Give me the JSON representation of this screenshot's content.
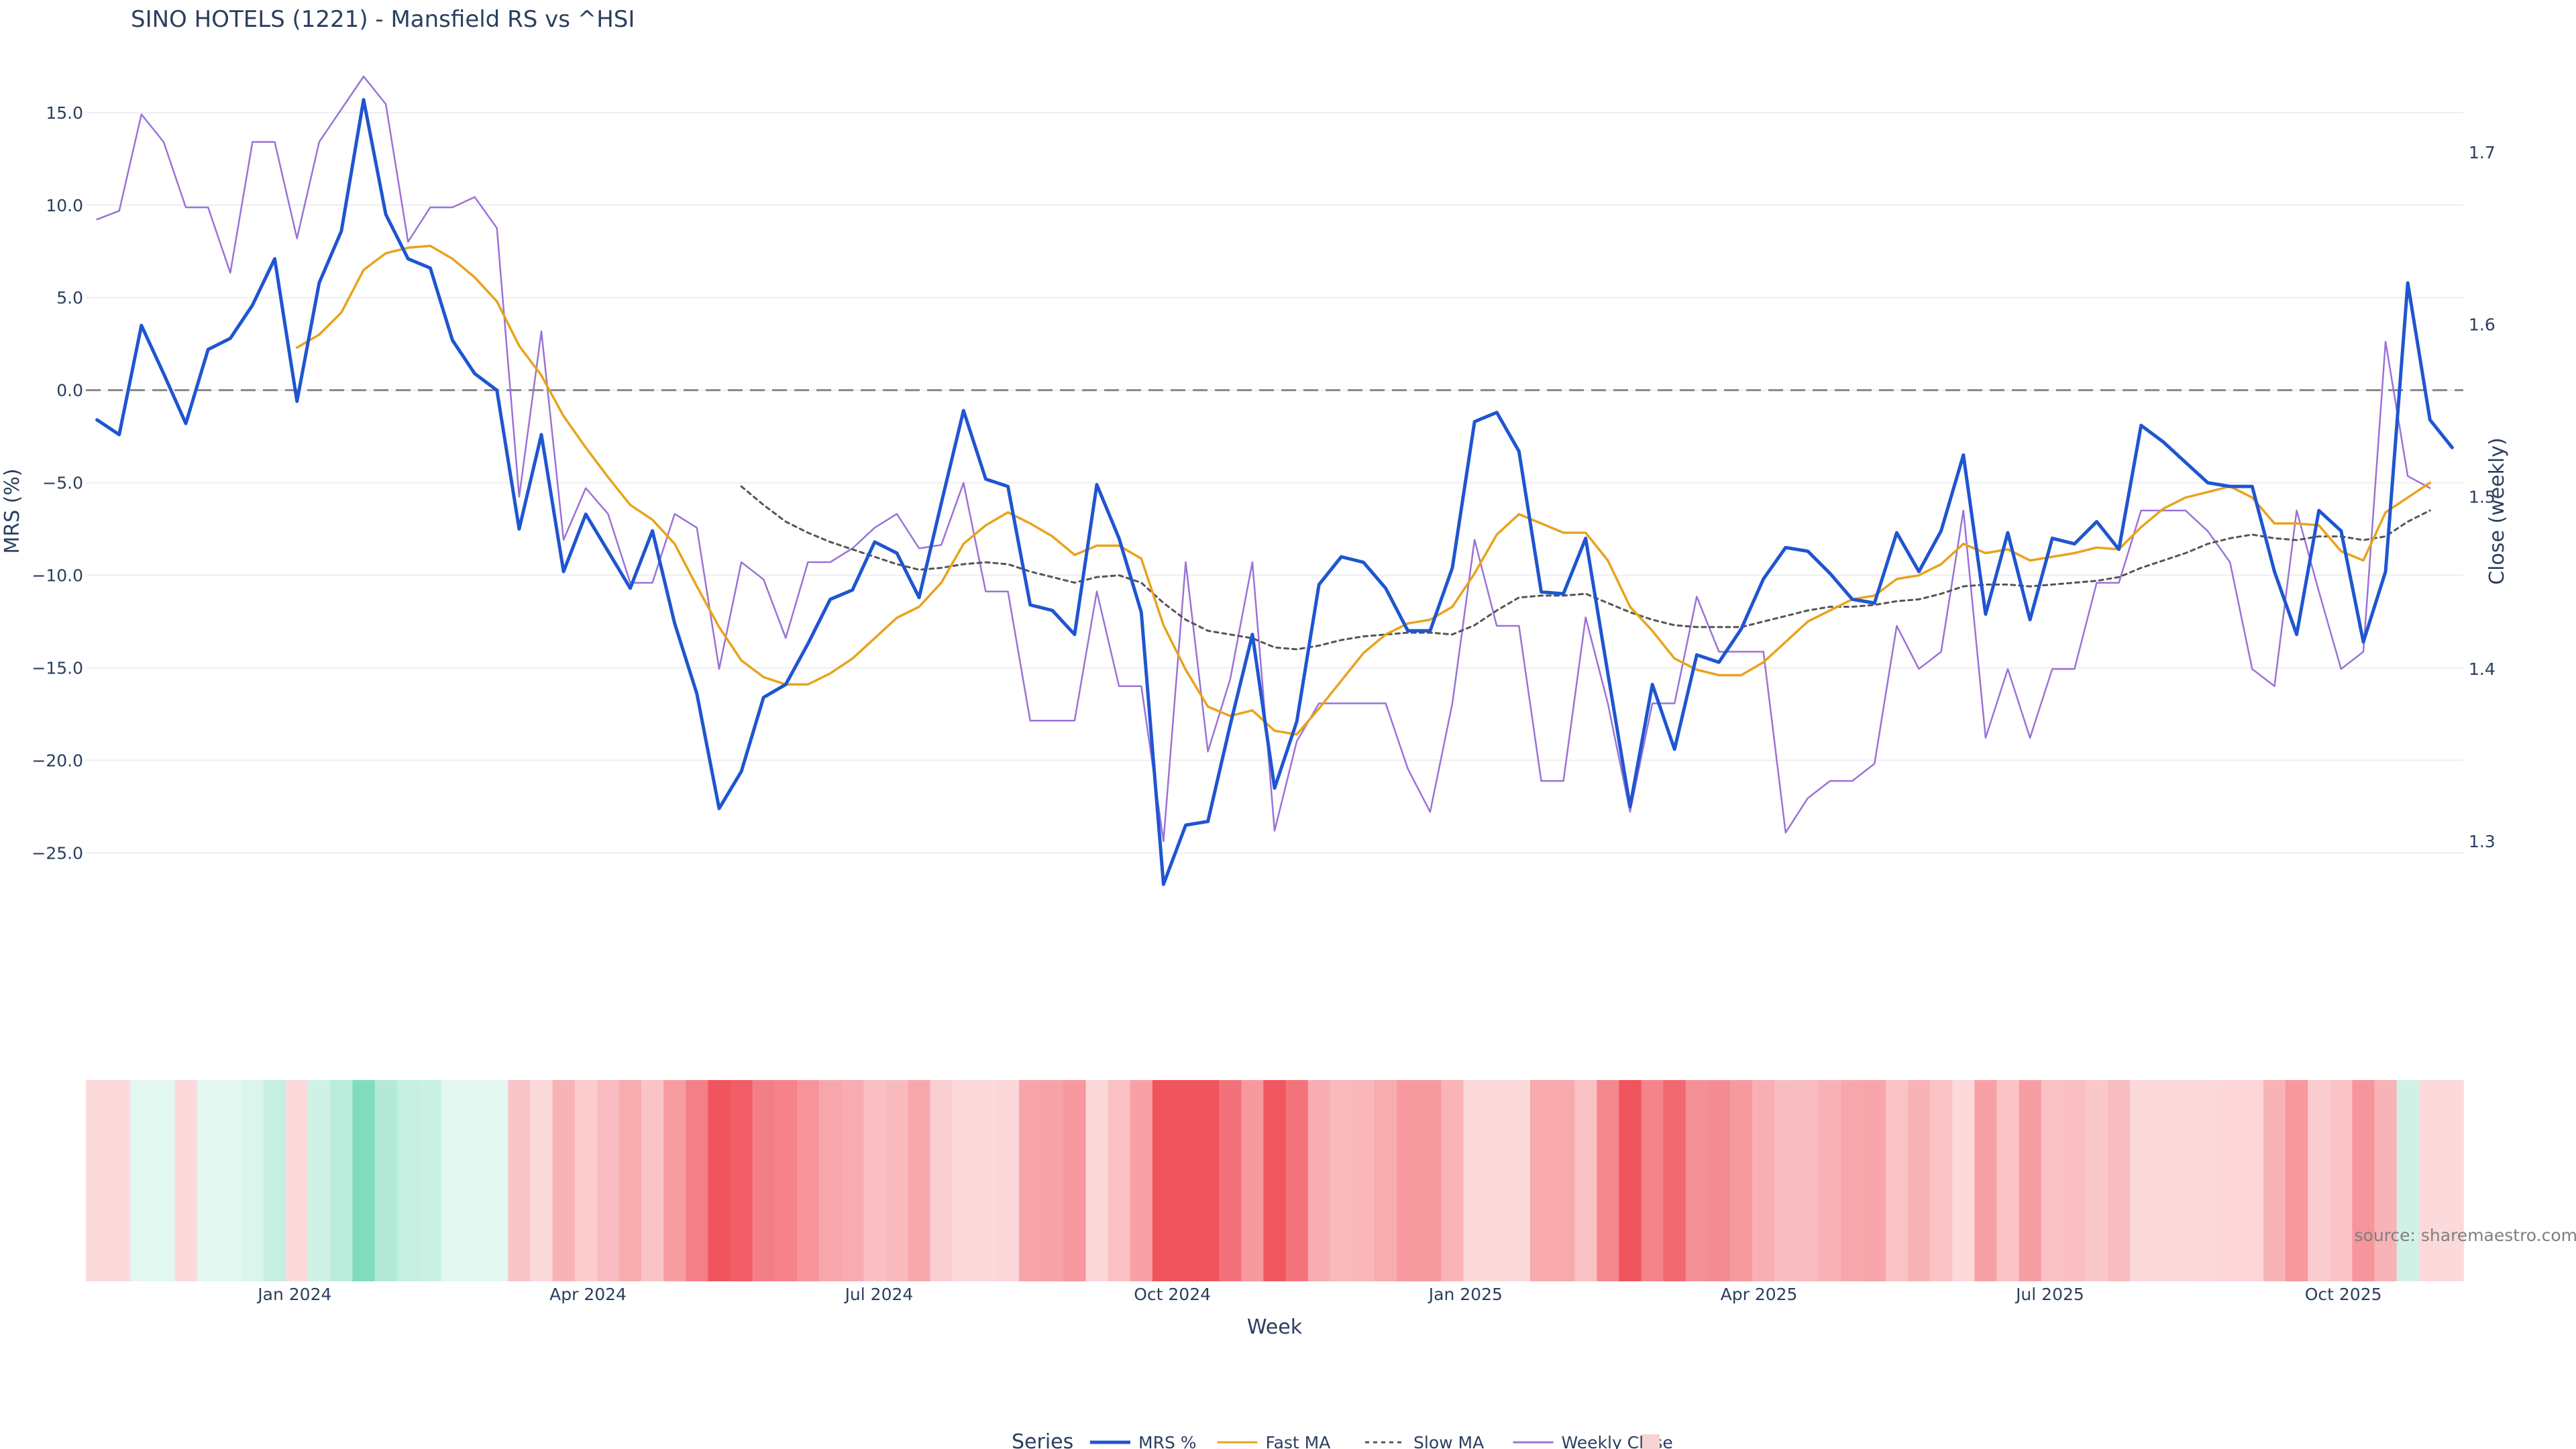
{
  "chart_data": {
    "type": "line",
    "title": "SINO HOTELS (1221) - Mansfield RS vs ^HSI",
    "ylabel_left": "MRS (%)",
    "ylabel_right": "Close (weekly)",
    "xlabel": "Week",
    "y_left_ticks": [
      "15.0",
      "10.0",
      "5.0",
      "0.0",
      "−5.0",
      "−10.0",
      "−15.0",
      "−20.0",
      "−25.0"
    ],
    "y_left_tick_values": [
      15,
      10,
      5,
      0,
      -5,
      -10,
      -15,
      -20,
      -25
    ],
    "y_left_range": [
      -29.3,
      16.3
    ],
    "y_right_ticks": [
      "1.7",
      "1.6",
      "1.5",
      "1.4",
      "1.3"
    ],
    "y_right_tick_values": [
      1.7,
      1.6,
      1.5,
      1.4,
      1.3
    ],
    "y_right_range": [
      1.247,
      1.737
    ],
    "x_ticks": [
      "Jan 2024",
      "Apr 2024",
      "Jul 2024",
      "Oct 2024",
      "Jan 2025",
      "Apr 2025",
      "Jul 2025",
      "Oct 2025"
    ],
    "x_tick_weeks": [
      9.9,
      23.1,
      36.2,
      49.4,
      62.6,
      75.8,
      88.9,
      102.1
    ],
    "reference_line": 0,
    "legend_title": "Series",
    "legend_position": "bottom-center",
    "source_text": "source: sharemaestro.com",
    "series": [
      {
        "name": "MRS %",
        "color": "#1f55d0",
        "style": "solid",
        "values": [
          -1.6,
          -2.4,
          3.5,
          0.9,
          -1.8,
          2.2,
          2.8,
          4.6,
          7.1,
          -0.6,
          5.8,
          8.6,
          15.7,
          9.5,
          7.1,
          6.6,
          2.7,
          0.9,
          0.0,
          -7.5,
          -2.4,
          -9.8,
          -6.7,
          -8.7,
          -10.7,
          -7.6,
          -12.6,
          -16.4,
          -22.6,
          -20.6,
          -16.6,
          -15.9,
          -13.7,
          -11.3,
          -10.8,
          -8.2,
          -8.8,
          -11.2,
          -6.1,
          -1.1,
          -4.8,
          -5.2,
          -11.6,
          -11.9,
          -13.2,
          -5.1,
          -8.0,
          -12.0,
          -26.7,
          -23.5,
          -23.3,
          -18.1,
          -13.2,
          -21.5,
          -17.9,
          -10.5,
          -9.0,
          -9.3,
          -10.7,
          -13.0,
          -13.0,
          -9.6,
          -1.7,
          -1.2,
          -3.3,
          -10.9,
          -11.0,
          -8.0,
          -15.3,
          -22.5,
          -15.9,
          -19.4,
          -14.3,
          -14.7,
          -12.9,
          -10.2,
          -8.5,
          -8.7,
          -9.9,
          -11.3,
          -11.5,
          -7.7,
          -9.8,
          -7.6,
          -3.5,
          -12.1,
          -7.7,
          -12.4,
          -8.0,
          -8.3,
          -7.1,
          -8.6,
          -1.9,
          -2.8,
          -3.9,
          -5.0,
          -5.2,
          -5.2,
          -9.8,
          -13.2,
          -6.5,
          -7.6,
          -13.6,
          -9.8,
          5.8,
          -1.6,
          -3.1
        ]
      },
      {
        "name": "Fast MA",
        "color": "#e8a31c",
        "style": "solid",
        "values": [
          null,
          null,
          null,
          null,
          null,
          null,
          null,
          null,
          null,
          2.3,
          3.0,
          4.2,
          6.5,
          7.4,
          7.7,
          7.8,
          7.1,
          6.1,
          4.8,
          2.4,
          0.8,
          -1.4,
          -3.1,
          -4.7,
          -6.2,
          -7.0,
          -8.3,
          -10.6,
          -12.8,
          -14.6,
          -15.5,
          -15.9,
          -15.9,
          -15.3,
          -14.5,
          -13.4,
          -12.3,
          -11.7,
          -10.4,
          -8.3,
          -7.3,
          -6.6,
          -7.2,
          -7.9,
          -8.9,
          -8.4,
          -8.4,
          -9.1,
          -12.7,
          -15.1,
          -17.1,
          -17.6,
          -17.3,
          -18.4,
          -18.6,
          -17.2,
          -15.7,
          -14.2,
          -13.2,
          -12.6,
          -12.4,
          -11.7,
          -9.9,
          -7.8,
          -6.7,
          -7.2,
          -7.7,
          -7.7,
          -9.2,
          -11.7,
          -13.0,
          -14.5,
          -15.1,
          -15.4,
          -15.4,
          -14.7,
          -13.6,
          -12.5,
          -11.9,
          -11.3,
          -11.1,
          -10.2,
          -10.0,
          -9.4,
          -8.3,
          -8.8,
          -8.6,
          -9.2,
          -9.0,
          -8.8,
          -8.5,
          -8.6,
          -7.4,
          -6.4,
          -5.8,
          -5.5,
          -5.2,
          -5.8,
          -7.2,
          -7.2,
          -7.3,
          -8.7,
          -9.2,
          -6.6,
          -5.8,
          -5.0
        ]
      },
      {
        "name": "Slow MA",
        "color": "#555555",
        "style": "dotted",
        "values": [
          null,
          null,
          null,
          null,
          null,
          null,
          null,
          null,
          null,
          null,
          null,
          null,
          null,
          null,
          null,
          null,
          null,
          null,
          null,
          null,
          null,
          null,
          null,
          null,
          null,
          null,
          null,
          null,
          null,
          -5.2,
          -6.2,
          -7.1,
          -7.7,
          -8.2,
          -8.6,
          -9.0,
          -9.4,
          -9.7,
          -9.6,
          -9.4,
          -9.3,
          -9.4,
          -9.8,
          -10.1,
          -10.4,
          -10.1,
          -10.0,
          -10.4,
          -11.5,
          -12.4,
          -13.0,
          -13.2,
          -13.4,
          -13.9,
          -14.0,
          -13.8,
          -13.5,
          -13.3,
          -13.2,
          -13.1,
          -13.1,
          -13.2,
          -12.7,
          -11.9,
          -11.2,
          -11.1,
          -11.1,
          -11.0,
          -11.5,
          -12.0,
          -12.4,
          -12.7,
          -12.8,
          -12.8,
          -12.8,
          -12.5,
          -12.2,
          -11.9,
          -11.7,
          -11.7,
          -11.6,
          -11.4,
          -11.3,
          -11.0,
          -10.6,
          -10.5,
          -10.5,
          -10.6,
          -10.5,
          -10.4,
          -10.3,
          -10.1,
          -9.6,
          -9.2,
          -8.8,
          -8.3,
          -8.0,
          -7.8,
          -8.0,
          -8.1,
          -7.9,
          -7.9,
          -8.1,
          -7.9,
          -7.1,
          -6.5
        ]
      },
      {
        "name": "Weekly Close",
        "color": "#9b72d6",
        "style": "solid",
        "values": [
          1.661,
          1.666,
          1.722,
          1.706,
          1.668,
          1.668,
          1.63,
          1.706,
          1.706,
          1.65,
          1.706,
          1.725,
          1.744,
          1.728,
          1.648,
          1.668,
          1.668,
          1.674,
          1.656,
          1.5,
          1.596,
          1.475,
          1.505,
          1.49,
          1.45,
          1.45,
          1.49,
          1.482,
          1.4,
          1.462,
          1.452,
          1.418,
          1.462,
          1.462,
          1.47,
          1.482,
          1.49,
          1.47,
          1.472,
          1.508,
          1.445,
          1.445,
          1.37,
          1.37,
          1.37,
          1.445,
          1.39,
          1.39,
          1.3,
          1.462,
          1.352,
          1.394,
          1.462,
          1.306,
          1.358,
          1.38,
          1.38,
          1.38,
          1.38,
          1.342,
          1.317,
          1.38,
          1.475,
          1.425,
          1.425,
          1.335,
          1.335,
          1.43,
          1.38,
          1.317,
          1.38,
          1.38,
          1.442,
          1.41,
          1.41,
          1.41,
          1.305,
          1.325,
          1.335,
          1.335,
          1.345,
          1.425,
          1.4,
          1.41,
          1.492,
          1.36,
          1.4,
          1.36,
          1.4,
          1.4,
          1.45,
          1.45,
          1.492,
          1.492,
          1.492,
          1.48,
          1.462,
          1.4,
          1.39,
          1.492,
          1.445,
          1.4,
          1.41,
          1.59,
          1.512,
          1.505
        ]
      }
    ],
    "heatmap_strip": {
      "low_color": "#f0505a",
      "high_color": "#5fd3ac",
      "values": [
        -1.6,
        -2.4,
        3.5,
        0.9,
        -1.8,
        2.2,
        2.8,
        4.6,
        7.1,
        -0.6,
        5.8,
        8.6,
        15.7,
        9.5,
        7.1,
        6.6,
        2.7,
        0.9,
        0.0,
        -7.5,
        -2.4,
        -9.8,
        -6.7,
        -8.7,
        -10.7,
        -7.6,
        -12.6,
        -16.4,
        -22.6,
        -20.6,
        -16.6,
        -15.9,
        -13.7,
        -11.3,
        -10.8,
        -8.2,
        -8.8,
        -11.2,
        -6.1,
        -1.1,
        -4.8,
        -5.2,
        -11.6,
        -11.9,
        -13.2,
        -5.1,
        -8.0,
        -12.0,
        -26.7,
        -23.5,
        -23.3,
        -18.1,
        -13.2,
        -21.5,
        -17.9,
        -10.5,
        -9.0,
        -9.3,
        -10.7,
        -13.0,
        -13.0,
        -9.6,
        -1.7,
        -1.2,
        -3.3,
        -10.9,
        -11.0,
        -8.0,
        -15.3,
        -22.5,
        -15.9,
        -19.4,
        -14.3,
        -14.7,
        -12.9,
        -10.2,
        -8.5,
        -8.7,
        -9.9,
        -11.3,
        -11.5,
        -7.7,
        -9.8,
        -7.6,
        -3.5,
        -12.1,
        -7.7,
        -12.4,
        -8.0,
        -8.3,
        -7.1,
        -8.6,
        -1.9,
        -2.8,
        -3.9,
        -5.0,
        -5.2,
        -5.2,
        -9.8,
        -13.2,
        -6.5,
        -7.6,
        -13.6,
        -9.8,
        5.8,
        -1.6,
        -3.1
      ]
    }
  }
}
